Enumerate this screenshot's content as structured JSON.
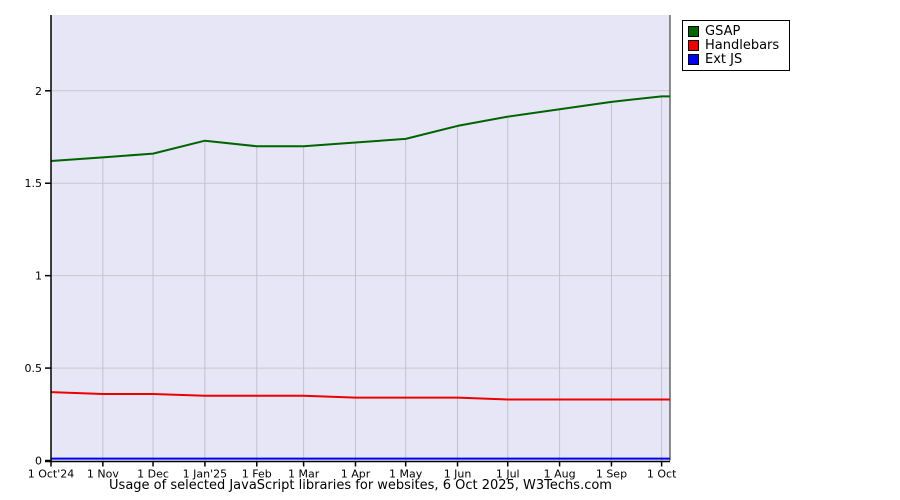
{
  "chart_data": {
    "type": "line",
    "title": "Usage of selected JavaScript libraries for websites, 6 Oct 2025, W3Techs.com",
    "xlabel": "",
    "ylabel": "",
    "legend_position": "top-right",
    "grid": "horizontal lines full width; vertical lines clipped below top series",
    "x_tick_labels": [
      "1 Oct'24",
      "1 Nov",
      "1 Dec",
      "1 Jan'25",
      "1 Feb",
      "1 Mar",
      "1 Apr",
      "1 May",
      "1 Jun",
      "1 Jul",
      "1 Aug",
      "1 Sep",
      "1 Oct"
    ],
    "x_tick_days": [
      0,
      31,
      61,
      92,
      123,
      151,
      182,
      212,
      243,
      273,
      304,
      335,
      365
    ],
    "x_days": [
      0,
      31,
      61,
      92,
      123,
      151,
      182,
      212,
      243,
      273,
      304,
      335,
      365,
      370
    ],
    "x_end_day": 370,
    "yticks": [
      0,
      0.5,
      1,
      1.5,
      2
    ],
    "ytick_labels": [
      "0",
      "0.5",
      "1",
      "1.5",
      "2"
    ],
    "ylim": [
      0,
      2.41
    ],
    "series": [
      {
        "name": "GSAP",
        "color": "#006400",
        "values": [
          1.62,
          1.64,
          1.66,
          1.73,
          1.7,
          1.7,
          1.72,
          1.74,
          1.81,
          1.86,
          1.9,
          1.94,
          1.97,
          1.97
        ]
      },
      {
        "name": "Handlebars",
        "color": "#ee0000",
        "values": [
          0.37,
          0.36,
          0.36,
          0.35,
          0.35,
          0.35,
          0.34,
          0.34,
          0.34,
          0.33,
          0.33,
          0.33,
          0.33,
          0.33
        ]
      },
      {
        "name": "Ext JS",
        "color": "#0000ee",
        "values": [
          0.01,
          0.01,
          0.01,
          0.01,
          0.01,
          0.01,
          0.01,
          0.01,
          0.01,
          0.01,
          0.01,
          0.01,
          0.01,
          0.01
        ]
      }
    ],
    "colors": {
      "plot_bg": "#e6e6f7",
      "hgrid": "#c9c9c9",
      "vgrid": "#c2c2cb",
      "axis": "#000000",
      "right_border": "#444444",
      "text": "#000000"
    }
  }
}
